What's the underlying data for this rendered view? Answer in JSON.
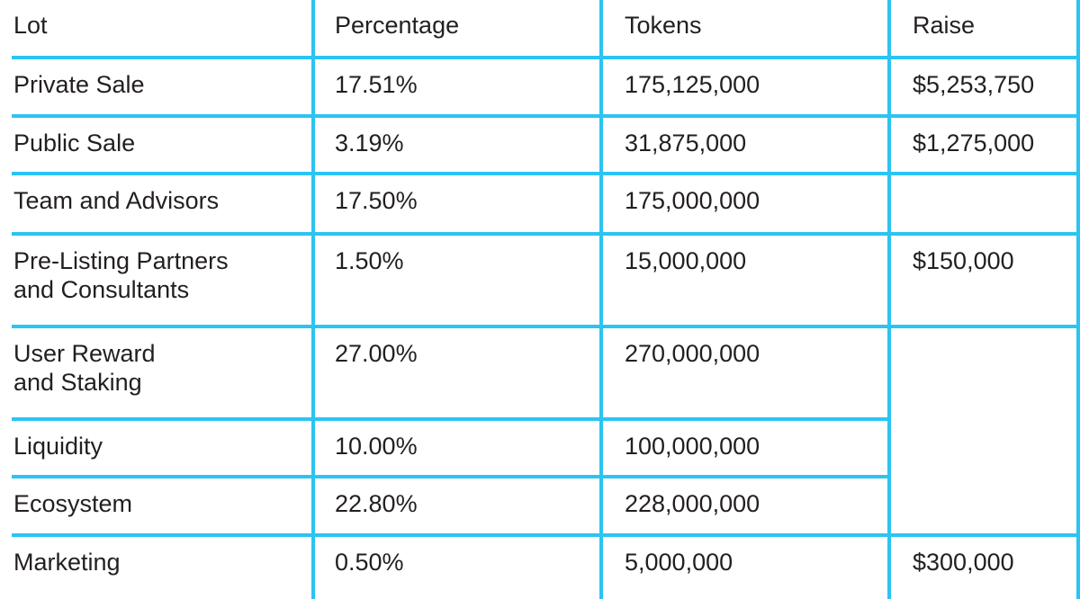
{
  "table": {
    "border_color": "#2bc4f3",
    "text_color": "#231f20",
    "columns": [
      "Lot",
      "Percentage",
      "Tokens",
      "Raise"
    ],
    "rows": [
      {
        "lot": "Private Sale",
        "percentage": "17.51%",
        "tokens": "175,125,000",
        "raise": "$5,253,750"
      },
      {
        "lot": "Public Sale",
        "percentage": "3.19%",
        "tokens": "31,875,000",
        "raise": "$1,275,000"
      },
      {
        "lot": "Team and Advisors",
        "percentage": "17.50%",
        "tokens": "175,000,000",
        "raise": ""
      },
      {
        "lot": "Pre-Listing Partners\nand Consultants",
        "percentage": "1.50%",
        "tokens": "15,000,000",
        "raise": "$150,000"
      },
      {
        "lot": "User Reward\nand Staking",
        "percentage": "27.00%",
        "tokens": "270,000,000",
        "raise": ""
      },
      {
        "lot": "Liquidity",
        "percentage": "10.00%",
        "tokens": "100,000,000",
        "raise": ""
      },
      {
        "lot": "Ecosystem",
        "percentage": "22.80%",
        "tokens": "228,000,000",
        "raise": ""
      },
      {
        "lot": "Marketing",
        "percentage": "0.50%",
        "tokens": "5,000,000",
        "raise": "$300,000"
      }
    ]
  }
}
